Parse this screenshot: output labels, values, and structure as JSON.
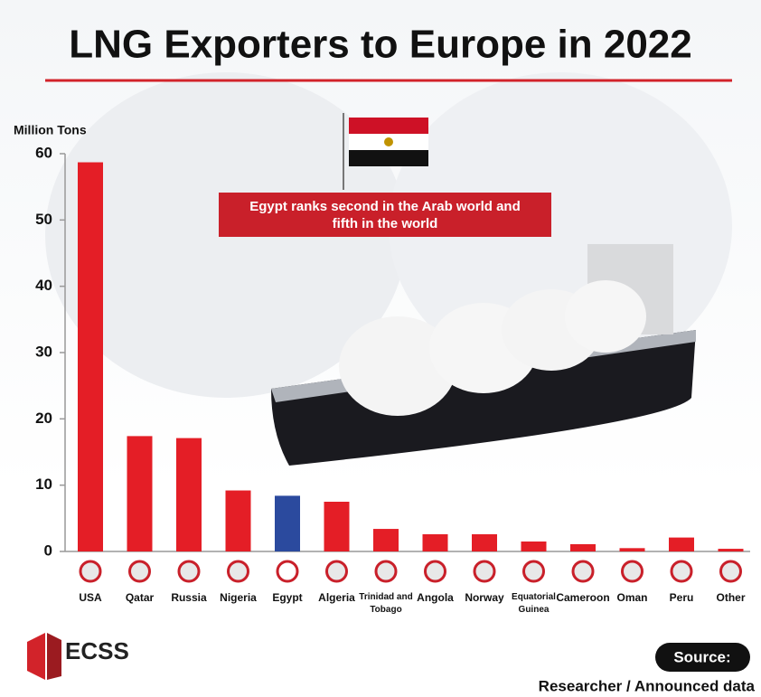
{
  "chart_data": {
    "type": "bar",
    "title": "LNG Exporters to Europe in 2022",
    "y_label": "Million Tons",
    "annotation": "Egypt ranks second in the Arab world and fifth in the world",
    "categories": [
      "USA",
      "Qatar",
      "Russia",
      "Nigeria",
      "Egypt",
      "Algeria",
      "Trinidad and Tobago",
      "Angola",
      "Norway",
      "Equatorial Guinea",
      "Cameroon",
      "Oman",
      "Peru",
      "Other"
    ],
    "values": [
      58.7,
      17.4,
      17.1,
      9.2,
      8.4,
      7.5,
      3.4,
      2.6,
      2.6,
      1.5,
      1.1,
      0.5,
      2.1,
      0.4
    ],
    "colors": [
      "#e41e26",
      "#e41e26",
      "#e41e26",
      "#e41e26",
      "#2b4a9e",
      "#e41e26",
      "#e41e26",
      "#e41e26",
      "#e41e26",
      "#e41e26",
      "#e41e26",
      "#e41e26",
      "#e41e26",
      "#e41e26"
    ],
    "ylim": [
      0,
      60
    ],
    "yticks": [
      0,
      10,
      20,
      30,
      40,
      50,
      60
    ],
    "logo": "ECSS",
    "source_title": "Source:",
    "source": "Researcher / Announced data"
  }
}
